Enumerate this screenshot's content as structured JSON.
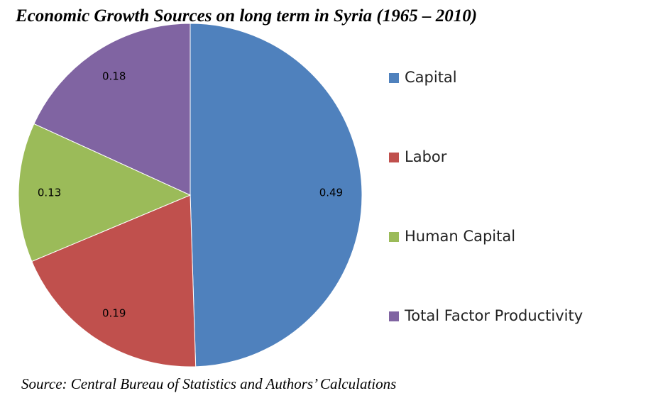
{
  "chart_data": {
    "type": "pie",
    "title": "Economic Growth Sources on long term in Syria (1965 – 2010)",
    "source": "Source: Central Bureau of Statistics and Authors’ Calculations",
    "categories": [
      "Capital",
      "Labor",
      "Human Capital",
      "Total Factor Productivity"
    ],
    "values": [
      0.49,
      0.19,
      0.13,
      0.18
    ],
    "colors": [
      "#4f81bd",
      "#c0504d",
      "#9bbb59",
      "#8064a2"
    ],
    "legend": "right"
  }
}
